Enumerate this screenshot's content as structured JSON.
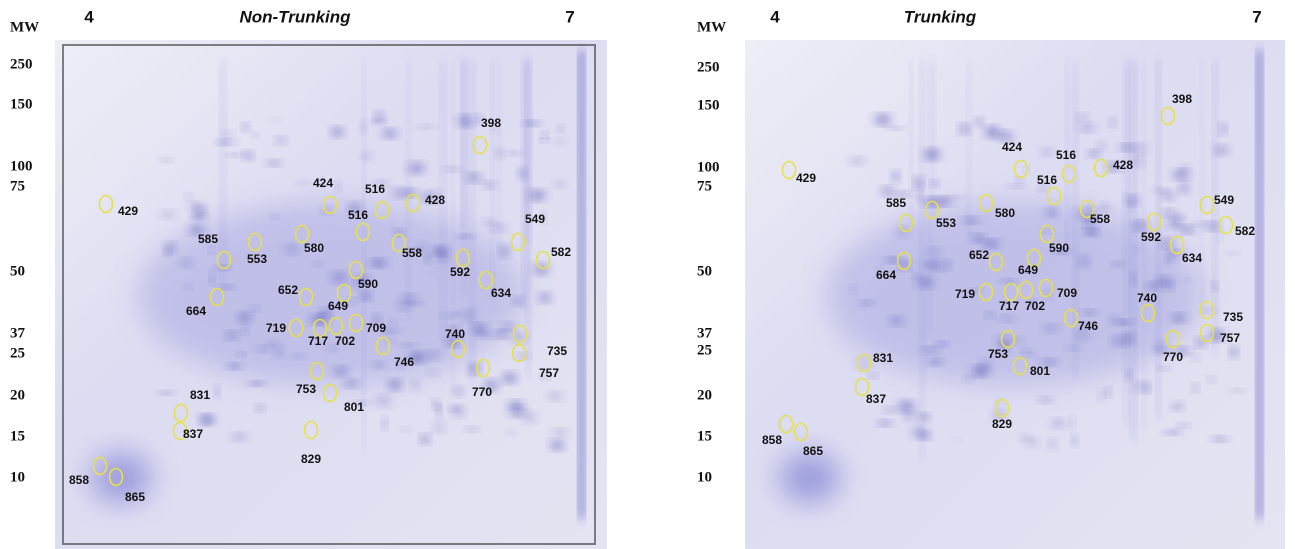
{
  "panels": [
    {
      "title": "Non-Trunking",
      "ph_low": "4",
      "ph_high": "7",
      "mw_heading": "MW",
      "mw_markers": [
        "250",
        "150",
        "100",
        "75",
        "50",
        "37",
        "25",
        "20",
        "15",
        "10"
      ],
      "spots": [
        "398",
        "424",
        "516",
        "428",
        "429",
        "549",
        "516",
        "585",
        "553",
        "580",
        "558",
        "592",
        "582",
        "590",
        "634",
        "652",
        "649",
        "664",
        "719",
        "717",
        "702",
        "709",
        "740",
        "746",
        "735",
        "757",
        "770",
        "753",
        "801",
        "831",
        "837",
        "829",
        "858",
        "865"
      ]
    },
    {
      "title": "Trunking",
      "ph_low": "4",
      "ph_high": "7",
      "mw_heading": "MW",
      "mw_markers": [
        "250",
        "150",
        "100",
        "75",
        "50",
        "37",
        "25",
        "20",
        "15",
        "10"
      ],
      "spots": [
        "398",
        "424",
        "516",
        "428",
        "429",
        "549",
        "516",
        "585",
        "553",
        "580",
        "558",
        "592",
        "582",
        "590",
        "634",
        "652",
        "649",
        "664",
        "719",
        "717",
        "702",
        "709",
        "740",
        "746",
        "735",
        "757",
        "770",
        "753",
        "801",
        "831",
        "837",
        "829",
        "858",
        "865"
      ]
    }
  ]
}
